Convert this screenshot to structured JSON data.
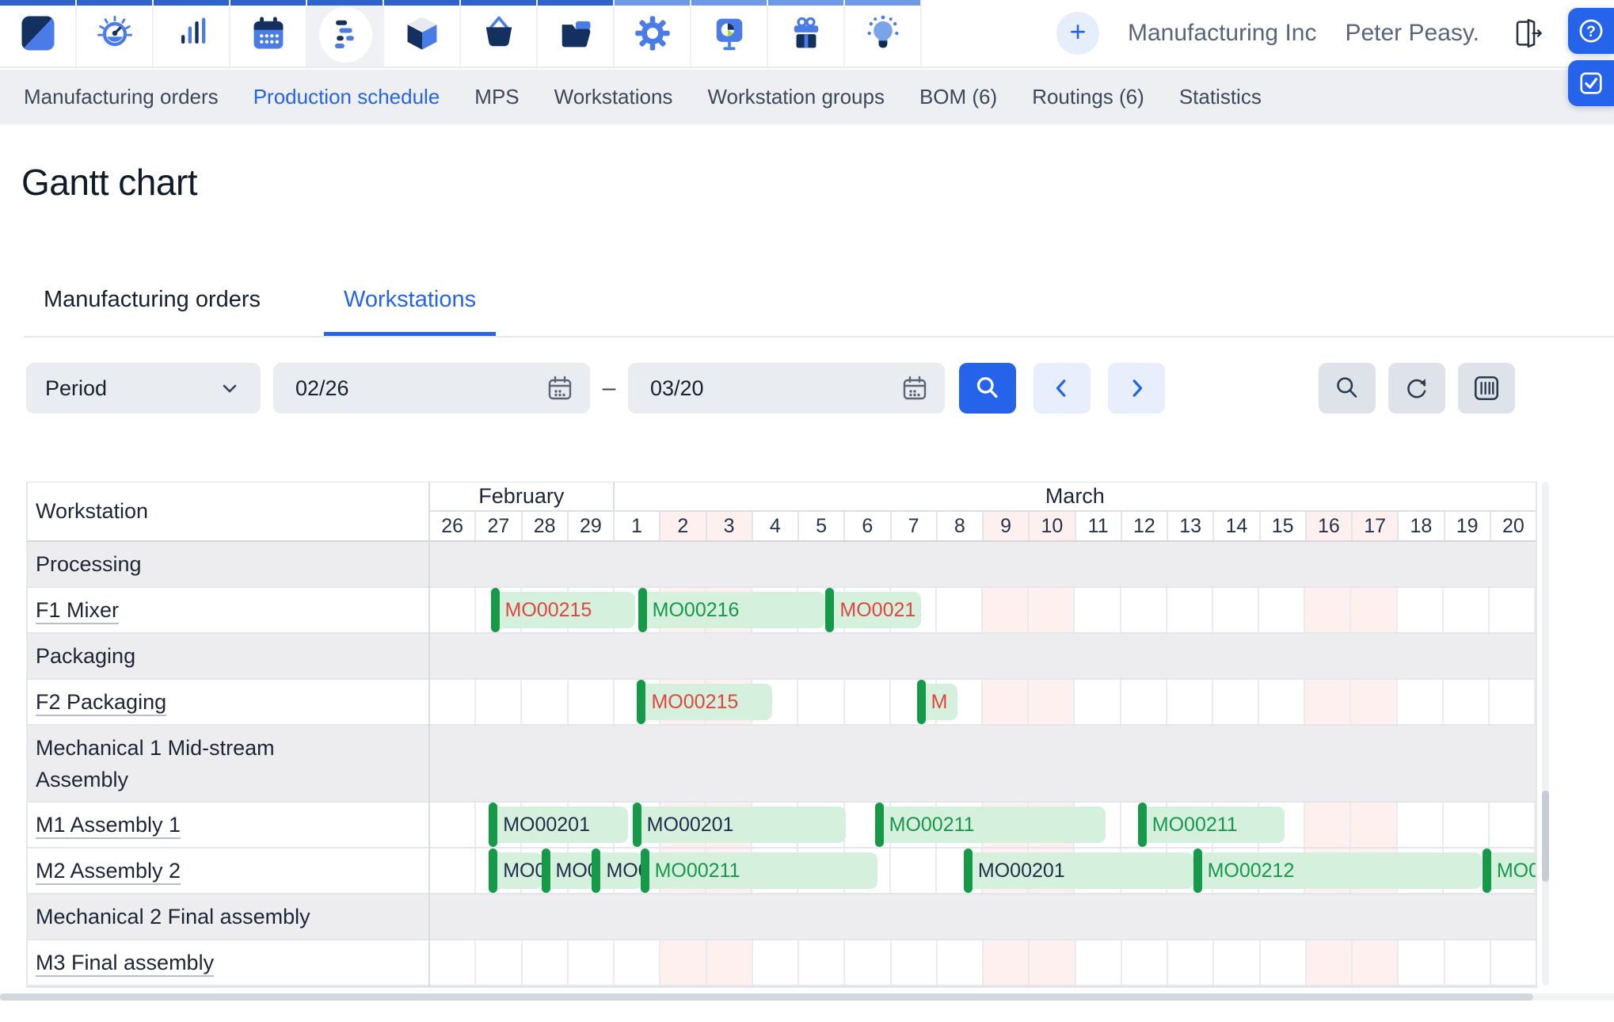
{
  "topbar": {
    "plus_label": "+",
    "company": "Manufacturing Inc",
    "user": "Peter Peasy.",
    "icons": [
      {
        "name": "logo",
        "strip": "dark",
        "active": false
      },
      {
        "name": "dashboard",
        "strip": "dark",
        "active": false
      },
      {
        "name": "statistics",
        "strip": "dark",
        "active": false
      },
      {
        "name": "calendar",
        "strip": "dark",
        "active": false
      },
      {
        "name": "production-schedule",
        "strip": "dark",
        "active": true
      },
      {
        "name": "stock",
        "strip": "dark",
        "active": false
      },
      {
        "name": "procurement",
        "strip": "dark",
        "active": false
      },
      {
        "name": "documents",
        "strip": "dark",
        "active": false
      },
      {
        "name": "settings",
        "strip": "light",
        "active": false
      },
      {
        "name": "reports",
        "strip": "light",
        "active": false
      },
      {
        "name": "rewards",
        "strip": "light",
        "active": false
      },
      {
        "name": "ideas",
        "strip": "light",
        "active": false
      }
    ]
  },
  "nav": {
    "items": [
      {
        "label": "Manufacturing orders",
        "active": false
      },
      {
        "label": "Production schedule",
        "active": true
      },
      {
        "label": "MPS",
        "active": false
      },
      {
        "label": "Workstations",
        "active": false
      },
      {
        "label": "Workstation groups",
        "active": false
      },
      {
        "label": "BOM (6)",
        "active": false
      },
      {
        "label": "Routings (6)",
        "active": false
      },
      {
        "label": "Statistics",
        "active": false
      }
    ]
  },
  "page": {
    "title": "Gantt chart",
    "tabs": [
      {
        "label": "Manufacturing orders",
        "active": false
      },
      {
        "label": "Workstations",
        "active": true
      }
    ]
  },
  "filters": {
    "period_label": "Period",
    "date_from": "02/26",
    "dash": "–",
    "date_to": "03/20"
  },
  "gantt": {
    "corner_label": "Workstation",
    "months": [
      {
        "label": "February",
        "days": 4
      },
      {
        "label": "March",
        "days": 20
      }
    ],
    "days": [
      "26",
      "27",
      "28",
      "29",
      "1",
      "2",
      "3",
      "4",
      "5",
      "6",
      "7",
      "8",
      "9",
      "10",
      "11",
      "12",
      "13",
      "14",
      "15",
      "16",
      "17",
      "18",
      "19",
      "20"
    ],
    "weekend_cols": [
      5,
      6,
      12,
      13,
      19,
      20
    ],
    "total_units": 24,
    "colors": {
      "red": "#e2453f",
      "green": "#17984b",
      "navy": "#20304a",
      "bar_bg": "#d5f1dd",
      "notch": "#169a4a",
      "weekend": "#fdf0ef",
      "accent": "#2563eb"
    },
    "rows": [
      {
        "type": "group",
        "label": "Processing",
        "tall": false,
        "bars": []
      },
      {
        "type": "workstation",
        "label": "F1 Mixer",
        "tall": false,
        "bars": [
          {
            "label": "MO00215",
            "color": "red",
            "start": 1.35,
            "end": 4.45
          },
          {
            "label": "MO00216",
            "color": "green",
            "start": 4.55,
            "end": 8.58
          },
          {
            "label": "MO0021",
            "color": "red",
            "start": 8.62,
            "end": 10.66
          }
        ]
      },
      {
        "type": "group",
        "label": "Packaging",
        "tall": false,
        "bars": []
      },
      {
        "type": "workstation",
        "label": "F2 Packaging",
        "tall": false,
        "bars": [
          {
            "label": "MO00215",
            "color": "red",
            "start": 4.53,
            "end": 7.43
          },
          {
            "label": "M",
            "color": "red",
            "start": 10.6,
            "end": 11.45
          }
        ]
      },
      {
        "type": "group",
        "label": "Mechanical 1 Mid-stream Assembly",
        "tall": true,
        "bars": []
      },
      {
        "type": "workstation",
        "label": "M1 Assembly 1",
        "tall": false,
        "bars": [
          {
            "label": "MO00201",
            "color": "navy",
            "start": 1.31,
            "end": 4.29
          },
          {
            "label": "MO00201",
            "color": "navy",
            "start": 4.43,
            "end": 9.03
          },
          {
            "label": "MO00211",
            "color": "green",
            "start": 9.69,
            "end": 14.67
          },
          {
            "label": "MO00211",
            "color": "green",
            "start": 15.4,
            "end": 18.55
          }
        ]
      },
      {
        "type": "workstation",
        "label": "M2 Assembly 2",
        "tall": false,
        "bars": [
          {
            "label": "MO0",
            "color": "navy",
            "start": 1.31,
            "end": 2.45
          },
          {
            "label": "MO0",
            "color": "navy",
            "start": 2.45,
            "end": 3.55
          },
          {
            "label": "MO0",
            "color": "navy",
            "start": 3.55,
            "end": 4.6
          },
          {
            "label": "MO00211",
            "color": "green",
            "start": 4.6,
            "end": 9.72
          },
          {
            "label": "MO00201",
            "color": "navy",
            "start": 11.62,
            "end": 16.57
          },
          {
            "label": "MO00212",
            "color": "green",
            "start": 16.6,
            "end": 22.83
          },
          {
            "label": "MO0",
            "color": "green",
            "start": 22.88,
            "end": 24.4
          }
        ]
      },
      {
        "type": "group",
        "label": "Mechanical 2 Final assembly",
        "tall": false,
        "bars": []
      },
      {
        "type": "workstation",
        "label": "M3 Final assembly",
        "tall": false,
        "bars": []
      }
    ]
  }
}
